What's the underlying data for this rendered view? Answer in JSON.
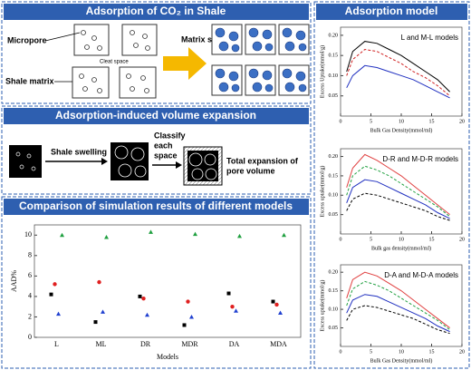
{
  "panels": {
    "shale": {
      "title": "Adsorption of CO₂ in Shale",
      "micropore": "Micropore",
      "shale_matrix": "Shale matrix",
      "cleat_space": "Cleat space",
      "matrix_swelling": "Matrix swelling"
    },
    "expansion": {
      "title": "Adsorption-induced volume expansion",
      "shale_swelling": "Shale swelling",
      "classify": [
        "Classify",
        "each",
        "space"
      ],
      "total": [
        "Total expansion of",
        "pore volume"
      ]
    },
    "comparison": {
      "title": "Comparison of simulation results of different models"
    },
    "model": {
      "title": "Adsorption model"
    }
  },
  "chart_data": [
    {
      "type": "scatter",
      "categories": [
        "L",
        "ML",
        "DR",
        "MDR",
        "DA",
        "MDA"
      ],
      "x_label": "Models",
      "y_label": "AAD%",
      "ylim": [
        0,
        11
      ],
      "yticks": [
        0,
        2,
        4,
        6,
        8,
        10
      ],
      "series": [
        {
          "color": "#000000",
          "values": [
            4.2,
            1.5,
            4.0,
            1.2,
            4.3,
            3.5
          ]
        },
        {
          "color": "#e02020",
          "values": [
            5.2,
            5.4,
            3.8,
            3.5,
            3.0,
            3.2
          ]
        },
        {
          "color": "#2040d0",
          "values": [
            2.3,
            2.5,
            2.2,
            2.0,
            2.6,
            2.4
          ]
        },
        {
          "color": "#20a040",
          "values": [
            10.0,
            9.8,
            10.3,
            10.1,
            9.9,
            10.0
          ]
        }
      ]
    },
    {
      "type": "line",
      "annotation": "L and M-L models",
      "x_label": "Bulk Gas Density(mmol/ml)",
      "y_label": "Excess Uptake(mmol/g)",
      "x": [
        1,
        2,
        4,
        6,
        8,
        10,
        12,
        14,
        16,
        18
      ],
      "xlim": [
        0,
        20
      ],
      "xticks": [
        0,
        5,
        10,
        15,
        20
      ],
      "ylim": [
        0,
        0.22
      ],
      "yticks": [
        {
          "value": 0.05,
          "label": "0.05"
        },
        {
          "value": 0.1,
          "label": "0.10"
        },
        {
          "value": 0.15,
          "label": "0.15"
        },
        {
          "value": 0.2,
          "label": "0.20"
        }
      ],
      "series": [
        {
          "color": "#000000",
          "values": [
            0.11,
            0.16,
            0.185,
            0.18,
            0.165,
            0.15,
            0.13,
            0.11,
            0.09,
            0.06
          ]
        },
        {
          "color": "#d02020",
          "values": [
            0.1,
            0.14,
            0.165,
            0.16,
            0.145,
            0.13,
            0.11,
            0.095,
            0.075,
            0.05
          ]
        },
        {
          "color": "#2030c0",
          "values": [
            0.07,
            0.1,
            0.125,
            0.12,
            0.11,
            0.1,
            0.09,
            0.075,
            0.06,
            0.045
          ]
        }
      ]
    },
    {
      "type": "line",
      "annotation": "D-R and M-D-R models",
      "x_label": "Bulk gas density(mmol/ml)",
      "y_label": "Excess uptake(mmol/g)",
      "x": [
        1,
        2,
        4,
        6,
        8,
        10,
        12,
        14,
        16,
        18
      ],
      "xlim": [
        0,
        20
      ],
      "xticks": [
        0,
        5,
        10,
        15,
        20
      ],
      "ylim": [
        0,
        0.22
      ],
      "yticks": [
        {
          "value": 0.05,
          "label": "0.05"
        },
        {
          "value": 0.1,
          "label": "0.10"
        },
        {
          "value": 0.15,
          "label": "0.15"
        },
        {
          "value": 0.2,
          "label": "0.20"
        }
      ],
      "series": [
        {
          "color": "#e04040",
          "values": [
            0.12,
            0.17,
            0.205,
            0.19,
            0.17,
            0.15,
            0.125,
            0.1,
            0.075,
            0.05
          ]
        },
        {
          "color": "#20a040",
          "values": [
            0.1,
            0.15,
            0.175,
            0.165,
            0.15,
            0.13,
            0.11,
            0.09,
            0.07,
            0.045
          ]
        },
        {
          "color": "#2030c0",
          "values": [
            0.08,
            0.12,
            0.14,
            0.135,
            0.12,
            0.105,
            0.09,
            0.075,
            0.055,
            0.04
          ]
        },
        {
          "color": "#000000",
          "values": [
            0.06,
            0.09,
            0.105,
            0.1,
            0.09,
            0.08,
            0.07,
            0.06,
            0.045,
            0.035
          ]
        }
      ]
    },
    {
      "type": "line",
      "annotation": "D-A and M-D-A models",
      "x_label": "Bulk Gas Density(mmol/ml)",
      "y_label": "Excess uptake(mmol/g)",
      "x": [
        1,
        2,
        4,
        6,
        8,
        10,
        12,
        14,
        16,
        18
      ],
      "xlim": [
        0,
        20
      ],
      "xticks": [
        0,
        5,
        10,
        15,
        20
      ],
      "ylim": [
        0,
        0.22
      ],
      "yticks": [
        {
          "value": 0.05,
          "label": "0.05"
        },
        {
          "value": 0.1,
          "label": "0.10"
        },
        {
          "value": 0.15,
          "label": "0.15"
        },
        {
          "value": 0.2,
          "label": "0.20"
        }
      ],
      "series": [
        {
          "color": "#e04040",
          "values": [
            0.13,
            0.18,
            0.2,
            0.19,
            0.17,
            0.15,
            0.125,
            0.1,
            0.075,
            0.05
          ]
        },
        {
          "color": "#20a040",
          "values": [
            0.11,
            0.155,
            0.175,
            0.165,
            0.15,
            0.13,
            0.11,
            0.09,
            0.07,
            0.045
          ]
        },
        {
          "color": "#2030c0",
          "values": [
            0.09,
            0.125,
            0.14,
            0.135,
            0.12,
            0.105,
            0.09,
            0.075,
            0.055,
            0.04
          ]
        },
        {
          "color": "#000000",
          "values": [
            0.07,
            0.1,
            0.11,
            0.105,
            0.095,
            0.085,
            0.075,
            0.06,
            0.045,
            0.035
          ]
        }
      ]
    }
  ]
}
